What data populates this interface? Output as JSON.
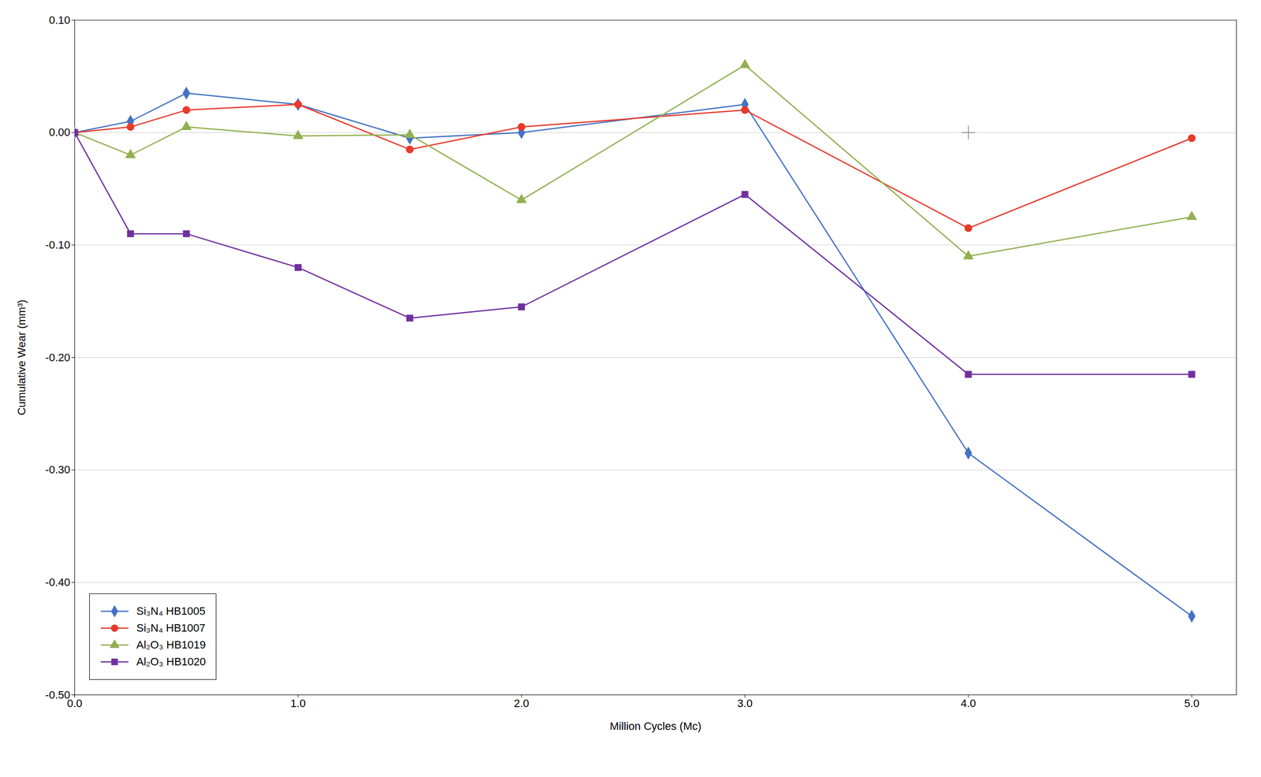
{
  "chart_data": {
    "type": "line",
    "xlabel": "Million Cycles (Mc)",
    "ylabel": "Cumulative Wear (mm³)",
    "series": [
      {
        "name": "Si₃N₄ HB1005",
        "color": "#4472C4",
        "marker": "diamond",
        "x": [
          0.0,
          0.25,
          0.5,
          1.0,
          1.5,
          2.0,
          3.0,
          4.0,
          5.0
        ],
        "values": [
          0.0,
          0.01,
          0.035,
          0.025,
          -0.005,
          0.0,
          0.025,
          -0.285,
          -0.43
        ]
      },
      {
        "name": "Si₃N₄ HB1007",
        "color": "#E8392A",
        "marker": "circle",
        "x": [
          0.0,
          0.25,
          0.5,
          1.0,
          1.5,
          2.0,
          3.0,
          4.0,
          5.0
        ],
        "values": [
          0.0,
          0.005,
          0.02,
          0.025,
          -0.015,
          0.005,
          0.02,
          -0.085,
          -0.005
        ]
      },
      {
        "name": "Al₂O₃ HB1019",
        "color": "#92B050",
        "marker": "triangle",
        "x": [
          0.0,
          0.25,
          0.5,
          1.0,
          1.5,
          2.0,
          3.0,
          4.0,
          5.0
        ],
        "values": [
          0.0,
          -0.02,
          0.005,
          -0.003,
          -0.002,
          -0.06,
          0.06,
          -0.11,
          -0.075
        ]
      },
      {
        "name": "Al₂O₃ HB1020",
        "color": "#7030A0",
        "marker": "square",
        "x": [
          0.0,
          0.25,
          0.5,
          1.0,
          1.5,
          2.0,
          3.0,
          4.0,
          5.0
        ],
        "values": [
          0.0,
          -0.09,
          -0.09,
          -0.12,
          -0.165,
          -0.155,
          -0.055,
          -0.215,
          -0.215
        ]
      }
    ],
    "annotations": [
      {
        "x": 4.0,
        "y": 0.0,
        "marker": "plus",
        "color": "gray"
      }
    ],
    "xlim": [
      0.0,
      5.2
    ],
    "ylim": [
      -0.5,
      0.1
    ],
    "xticks": [
      {
        "value": 0.0,
        "label": "0.0"
      },
      {
        "value": 1.0,
        "label": "1.0"
      },
      {
        "value": 2.0,
        "label": "2.0"
      },
      {
        "value": 3.0,
        "label": "3.0"
      },
      {
        "value": 4.0,
        "label": "4.0"
      },
      {
        "value": 5.0,
        "label": "5.0"
      }
    ],
    "yticks": [
      {
        "value": -0.5,
        "label": "-0.50"
      },
      {
        "value": -0.4,
        "label": "-0.40"
      },
      {
        "value": -0.3,
        "label": "-0.30"
      },
      {
        "value": -0.2,
        "label": "-0.20"
      },
      {
        "value": -0.1,
        "label": "-0.10"
      },
      {
        "value": 0.0,
        "label": "0.00"
      },
      {
        "value": 0.1,
        "label": "0.10"
      }
    ],
    "grid": "y",
    "legend": "lower left"
  }
}
